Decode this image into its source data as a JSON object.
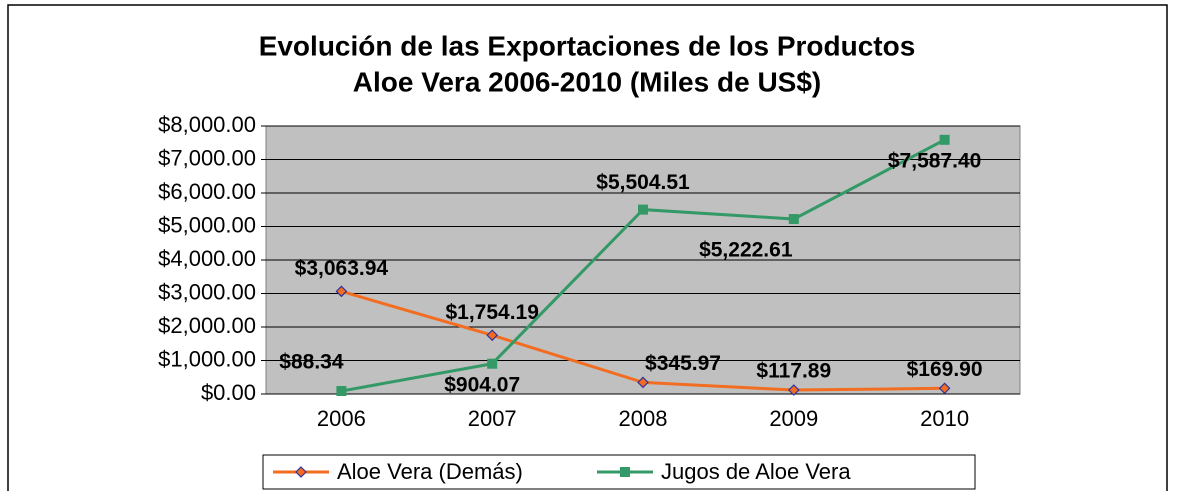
{
  "chart_data": {
    "type": "line",
    "title": "Evolución de las Exportaciones de los Productos",
    "subtitle": "Aloe Vera 2006-2010 (Miles de US$)",
    "categories": [
      "2006",
      "2007",
      "2008",
      "2009",
      "2010"
    ],
    "series": [
      {
        "name": "Aloe Vera (Demás)",
        "color": "#f26d21",
        "marker": "diamond",
        "values": [
          3063.94,
          1754.19,
          345.97,
          117.89,
          169.9
        ],
        "value_labels": [
          "$3,063.94",
          "$1,754.19",
          "$345.97",
          "$117.89",
          "$169.90"
        ]
      },
      {
        "name": "Jugos de Aloe Vera",
        "color": "#339966",
        "marker": "square",
        "values": [
          88.34,
          904.07,
          5504.51,
          5222.61,
          7587.4
        ],
        "value_labels": [
          "$88.34",
          "$904.07",
          "$5,504.51",
          "$5,222.61",
          "$7,587.40"
        ]
      }
    ],
    "ylim": [
      0,
      8000
    ],
    "yticks": [
      {
        "value": 0,
        "label": "$0.00"
      },
      {
        "value": 1000,
        "label": "$1,000.00"
      },
      {
        "value": 2000,
        "label": "$2,000.00"
      },
      {
        "value": 3000,
        "label": "$3,000.00"
      },
      {
        "value": 4000,
        "label": "$4,000.00"
      },
      {
        "value": 5000,
        "label": "$5,000.00"
      },
      {
        "value": 6000,
        "label": "$6,000.00"
      },
      {
        "value": 7000,
        "label": "$7,000.00"
      },
      {
        "value": 8000,
        "label": "$8,000.00"
      }
    ],
    "grid": true,
    "plot_background": "#c0c0c0",
    "legend": "bottom"
  }
}
